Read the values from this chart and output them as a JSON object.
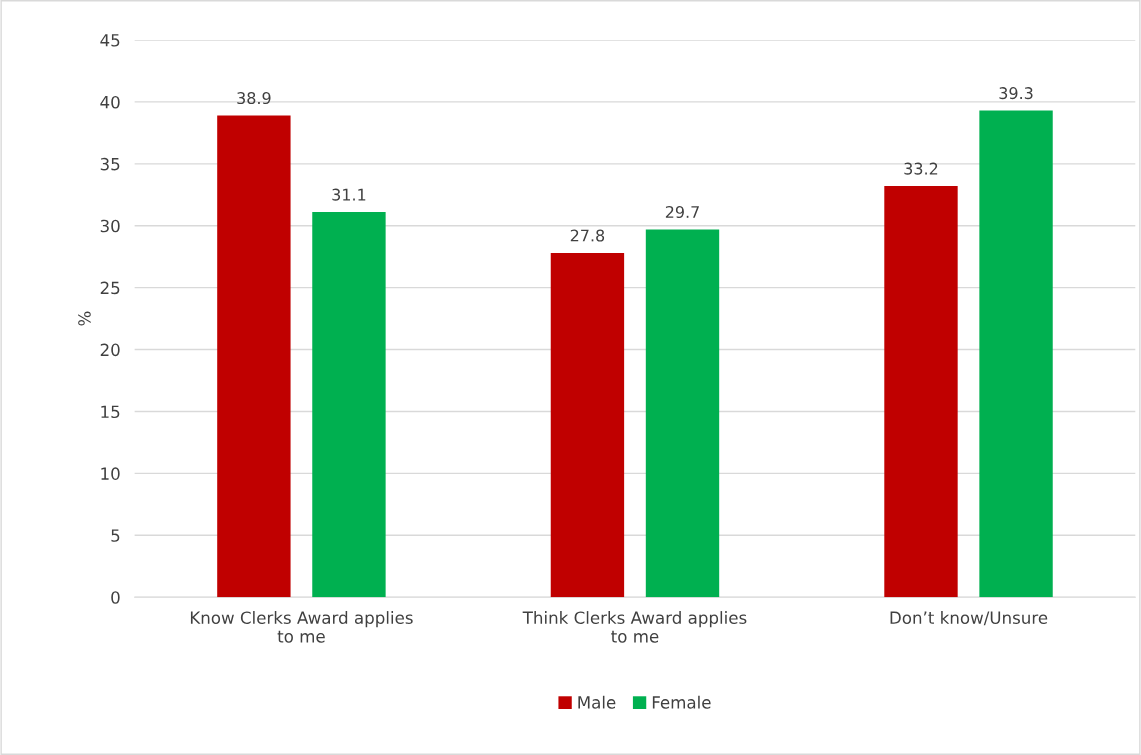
{
  "chart_data": {
    "type": "bar",
    "ylabel": "%",
    "categories": [
      "Know Clerks Award applies\nto me",
      "Think Clerks Award applies\nto me",
      "Don’t know/Unsure"
    ],
    "series": [
      {
        "name": "Male",
        "color": "#c00000",
        "values": [
          38.9,
          27.8,
          33.2
        ]
      },
      {
        "name": "Female",
        "color": "#00b050",
        "values": [
          31.1,
          29.7,
          39.3
        ]
      }
    ],
    "ylim": [
      0,
      45
    ],
    "yticks": [
      0,
      5,
      10,
      15,
      20,
      25,
      30,
      35,
      40,
      45
    ],
    "grid": "y",
    "legend": "bottom",
    "data_labels": true
  }
}
